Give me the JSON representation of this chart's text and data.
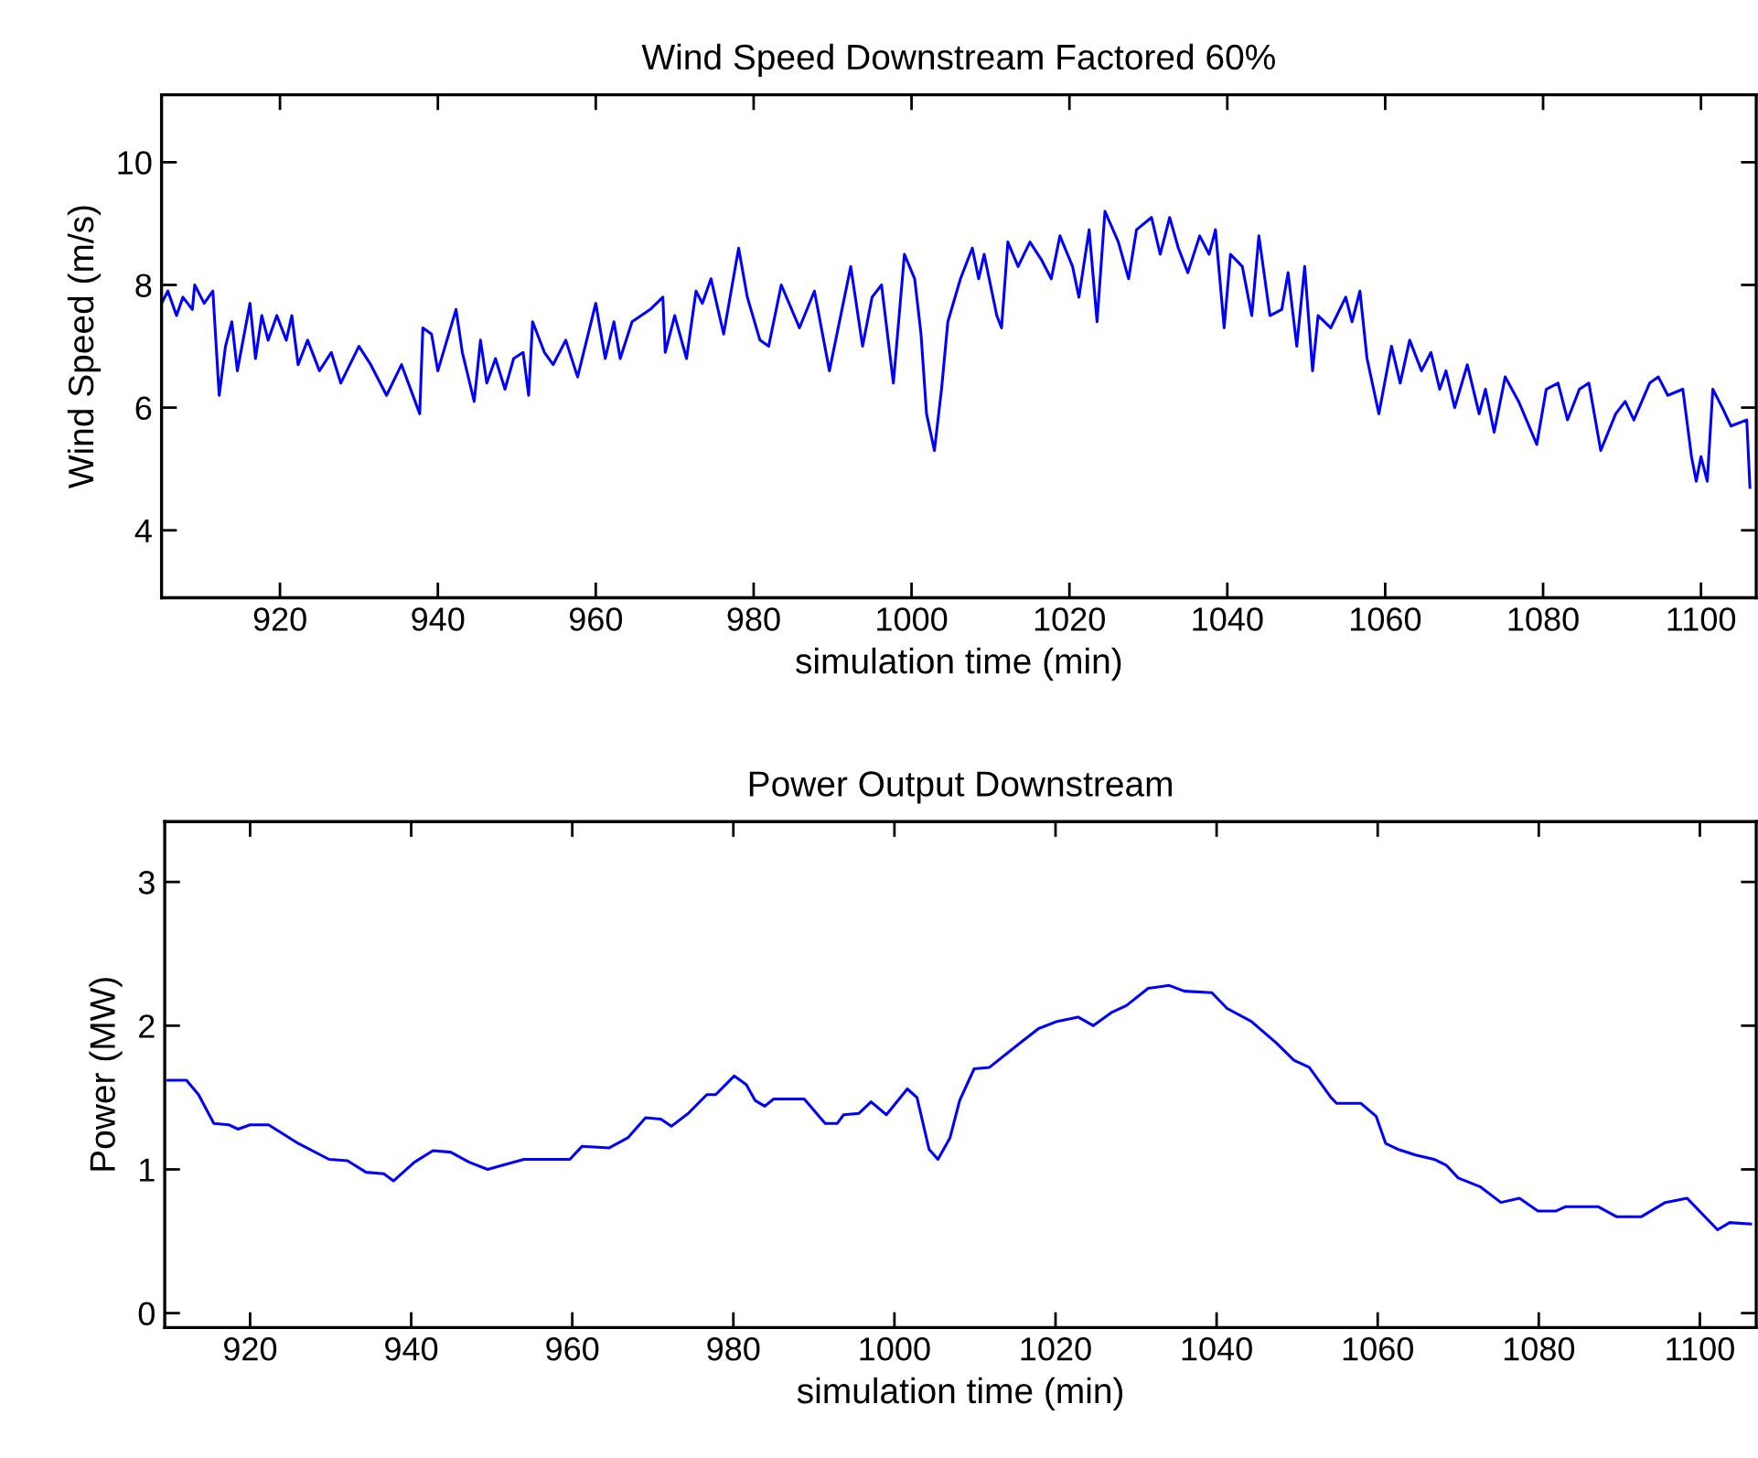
{
  "chart_data": [
    {
      "type": "line",
      "title": "Wind Speed Downstream Factored 60%",
      "xlabel": "simulation time (min)",
      "ylabel": "Wind Speed (m/s)",
      "xlim": [
        905,
        1107
      ],
      "ylim": [
        2.9,
        11.1
      ],
      "xticks": [
        920,
        940,
        960,
        980,
        1000,
        1020,
        1040,
        1060,
        1080,
        1100
      ],
      "yticks": [
        4,
        6,
        8,
        10
      ],
      "grid": false,
      "marker": "none",
      "line_style": "solid",
      "series": [
        {
          "color": "#0000ff",
          "x": [
            905.0,
            905.8,
            906.9,
            907.7,
            908.9,
            909.2,
            910.4,
            911.5,
            912.3,
            913.1,
            913.9,
            914.6,
            916.2,
            916.9,
            917.7,
            918.5,
            919.6,
            920.8,
            921.5,
            922.3,
            923.5,
            925.0,
            926.5,
            927.7,
            930.0,
            931.5,
            933.5,
            935.4,
            937.7,
            938.1,
            939.2,
            940.0,
            942.3,
            943.1,
            944.6,
            945.4,
            946.2,
            947.3,
            948.5,
            949.6,
            950.8,
            951.5,
            952.0,
            953.5,
            954.6,
            956.2,
            957.7,
            960.0,
            961.2,
            962.3,
            963.1,
            964.6,
            966.9,
            968.5,
            968.8,
            970.0,
            971.5,
            972.7,
            973.5,
            974.6,
            976.2,
            978.1,
            979.2,
            980.8,
            981.9,
            983.5,
            985.8,
            987.7,
            989.6,
            992.3,
            993.8,
            995.0,
            996.2,
            997.7,
            999.1,
            1000.4,
            1001.2,
            1001.9,
            1002.9,
            1003.8,
            1004.6,
            1006.2,
            1007.7,
            1008.5,
            1009.2,
            1010.8,
            1011.4,
            1012.2,
            1013.5,
            1015.0,
            1016.5,
            1017.7,
            1018.8,
            1020.4,
            1021.2,
            1022.5,
            1023.5,
            1024.5,
            1026.2,
            1027.5,
            1028.5,
            1030.4,
            1031.5,
            1032.7,
            1033.8,
            1035.0,
            1036.5,
            1037.7,
            1038.5,
            1039.6,
            1040.4,
            1041.9,
            1043.1,
            1044.0,
            1045.4,
            1046.9,
            1047.7,
            1048.8,
            1049.8,
            1050.8,
            1051.5,
            1053.1,
            1055.0,
            1055.8,
            1056.8,
            1057.7,
            1059.2,
            1060.8,
            1061.9,
            1063.1,
            1064.6,
            1065.8,
            1066.9,
            1067.7,
            1068.8,
            1070.4,
            1071.9,
            1072.7,
            1073.8,
            1075.2,
            1076.9,
            1079.2,
            1080.4,
            1081.9,
            1083.1,
            1084.6,
            1085.8,
            1087.3,
            1089.2,
            1090.4,
            1091.5,
            1093.5,
            1094.6,
            1095.8,
            1097.7,
            1098.8,
            1099.4,
            1100.0,
            1100.8,
            1101.5,
            1102.7,
            1103.8,
            1105.8,
            1106.2
          ],
          "values": [
            7.7,
            7.9,
            7.5,
            7.8,
            7.6,
            8.0,
            7.7,
            7.9,
            6.2,
            7.0,
            7.4,
            6.6,
            7.7,
            6.8,
            7.5,
            7.1,
            7.5,
            7.1,
            7.5,
            6.7,
            7.1,
            6.6,
            6.9,
            6.4,
            7.0,
            6.7,
            6.2,
            6.7,
            5.9,
            7.3,
            7.2,
            6.6,
            7.6,
            6.9,
            6.1,
            7.1,
            6.4,
            6.8,
            6.3,
            6.8,
            6.9,
            6.2,
            7.4,
            6.9,
            6.7,
            7.1,
            6.5,
            7.7,
            6.8,
            7.4,
            6.8,
            7.4,
            7.6,
            7.8,
            6.9,
            7.5,
            6.8,
            7.9,
            7.7,
            8.1,
            7.2,
            8.6,
            7.8,
            7.1,
            7.0,
            8.0,
            7.3,
            7.9,
            6.6,
            8.3,
            7.0,
            7.8,
            8.0,
            6.4,
            8.5,
            8.1,
            7.2,
            5.9,
            5.3,
            6.3,
            7.4,
            8.1,
            8.6,
            8.1,
            8.5,
            7.5,
            7.3,
            8.7,
            8.3,
            8.7,
            8.4,
            8.1,
            8.8,
            8.3,
            7.8,
            8.9,
            7.4,
            9.2,
            8.7,
            8.1,
            8.9,
            9.1,
            8.5,
            9.1,
            8.6,
            8.2,
            8.8,
            8.5,
            8.9,
            7.3,
            8.5,
            8.3,
            7.5,
            8.8,
            7.5,
            7.6,
            8.2,
            7.0,
            8.3,
            6.6,
            7.5,
            7.3,
            7.8,
            7.4,
            7.9,
            6.8,
            5.9,
            7.0,
            6.4,
            7.1,
            6.6,
            6.9,
            6.3,
            6.6,
            6.0,
            6.7,
            5.9,
            6.3,
            5.6,
            6.5,
            6.1,
            5.4,
            6.3,
            6.4,
            5.8,
            6.3,
            6.4,
            5.3,
            5.9,
            6.1,
            5.8,
            6.4,
            6.5,
            6.2,
            6.3,
            5.2,
            4.8,
            5.2,
            4.8,
            6.3,
            6.0,
            5.7,
            5.8,
            4.7
          ]
        }
      ]
    },
    {
      "type": "line",
      "title": "Power Output Downstream",
      "xlabel": "simulation time (min)",
      "ylabel": "Power (MW)",
      "xlim": [
        909.4,
        1107
      ],
      "ylim": [
        -0.1,
        3.42
      ],
      "xticks": [
        920,
        940,
        960,
        980,
        1000,
        1020,
        1040,
        1060,
        1080,
        1100
      ],
      "yticks": [
        0,
        1,
        2,
        3
      ],
      "grid": false,
      "marker": "none",
      "line_style": "solid",
      "series": [
        {
          "color": "#0000ff",
          "x": [
            909.8,
            912.1,
            913.6,
            915.5,
            917.4,
            918.5,
            920.0,
            922.3,
            926.0,
            929.8,
            932.1,
            934.4,
            936.6,
            937.8,
            940.4,
            942.7,
            944.9,
            947.2,
            949.5,
            951.4,
            954.0,
            959.7,
            961.2,
            964.6,
            966.9,
            969.1,
            971.0,
            972.3,
            974.4,
            976.7,
            977.8,
            980.1,
            981.6,
            982.7,
            983.9,
            985.0,
            988.8,
            991.4,
            992.9,
            993.7,
            995.6,
            997.1,
            999.0,
            1001.6,
            1002.8,
            1004.3,
            1005.4,
            1006.9,
            1008.1,
            1009.9,
            1011.8,
            1015.6,
            1017.9,
            1020.2,
            1022.8,
            1024.7,
            1026.9,
            1028.8,
            1031.5,
            1034.1,
            1036.0,
            1039.4,
            1041.3,
            1044.3,
            1047.4,
            1049.6,
            1051.5,
            1054.2,
            1054.9,
            1057.9,
            1059.8,
            1061.0,
            1062.5,
            1064.7,
            1067.0,
            1068.5,
            1070.0,
            1072.7,
            1075.3,
            1077.6,
            1079.9,
            1082.1,
            1083.3,
            1087.4,
            1089.7,
            1092.7,
            1095.7,
            1098.4,
            1100.3,
            1102.2,
            1103.7,
            1106.3
          ],
          "values": [
            1.62,
            1.62,
            1.52,
            1.32,
            1.31,
            1.28,
            1.31,
            1.31,
            1.18,
            1.07,
            1.06,
            0.98,
            0.97,
            0.92,
            1.05,
            1.13,
            1.12,
            1.05,
            1.0,
            1.03,
            1.07,
            1.07,
            1.16,
            1.15,
            1.22,
            1.36,
            1.35,
            1.3,
            1.39,
            1.52,
            1.52,
            1.65,
            1.59,
            1.48,
            1.44,
            1.49,
            1.49,
            1.32,
            1.32,
            1.38,
            1.39,
            1.47,
            1.38,
            1.56,
            1.5,
            1.14,
            1.07,
            1.22,
            1.48,
            1.7,
            1.71,
            1.88,
            1.98,
            2.03,
            2.06,
            2.0,
            2.09,
            2.14,
            2.26,
            2.28,
            2.24,
            2.23,
            2.12,
            2.03,
            1.88,
            1.76,
            1.71,
            1.5,
            1.46,
            1.46,
            1.37,
            1.18,
            1.14,
            1.1,
            1.07,
            1.03,
            0.94,
            0.88,
            0.77,
            0.8,
            0.71,
            0.71,
            0.74,
            0.74,
            0.67,
            0.67,
            0.77,
            0.8,
            0.69,
            0.58,
            0.63,
            0.62
          ]
        }
      ]
    }
  ]
}
